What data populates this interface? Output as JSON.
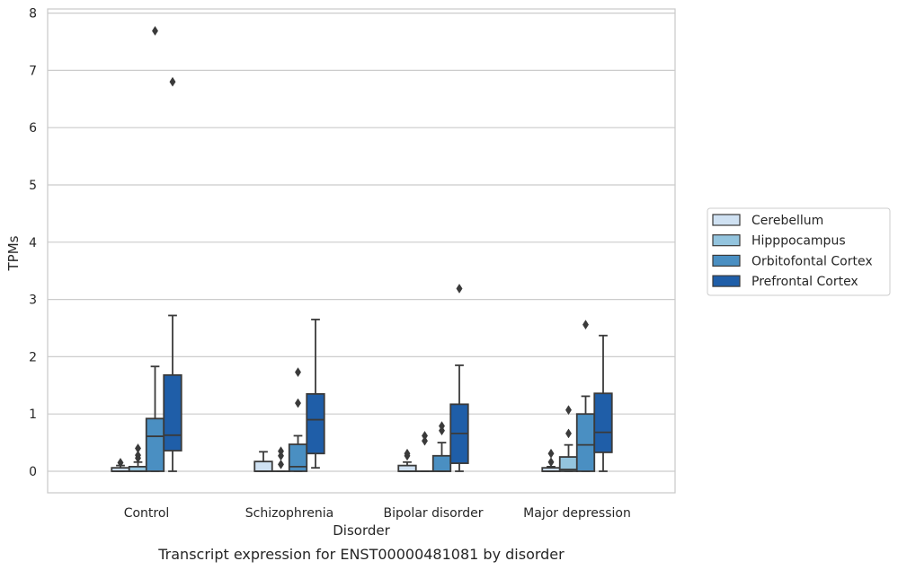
{
  "chart_data": {
    "type": "box",
    "caption": "Transcript expression for ENST00000481081 by disorder",
    "xlabel": "Disorder",
    "ylabel": "TPMs",
    "ylim": [
      -0.37,
      8.1
    ],
    "yticks": [
      0,
      1,
      2,
      3,
      4,
      5,
      6,
      7,
      8
    ],
    "grid": "horizontal",
    "legend_position": "right",
    "categories": [
      "Control",
      "Schizophrenia",
      "Bipolar disorder",
      "Major depression"
    ],
    "series": [
      {
        "name": "Cerebellum",
        "color": "#cfe1f2",
        "boxes": [
          {
            "whisker_low": 0.0,
            "q1": 0.0,
            "median": 0.0,
            "q3": 0.06,
            "whisker_high": 0.1,
            "outliers": [
              0.15
            ]
          },
          {
            "whisker_low": 0.0,
            "q1": 0.0,
            "median": 0.0,
            "q3": 0.17,
            "whisker_high": 0.34,
            "outliers": []
          },
          {
            "whisker_low": 0.0,
            "q1": 0.0,
            "median": 0.0,
            "q3": 0.1,
            "whisker_high": 0.16,
            "outliers": [
              0.27,
              0.31
            ]
          },
          {
            "whisker_low": 0.0,
            "q1": 0.0,
            "median": 0.0,
            "q3": 0.06,
            "whisker_high": 0.08,
            "outliers": [
              0.16,
              0.31
            ]
          }
        ]
      },
      {
        "name": "Hipppocampus",
        "color": "#93c4de",
        "boxes": [
          {
            "whisker_low": 0.0,
            "q1": 0.0,
            "median": 0.0,
            "q3": 0.08,
            "whisker_high": 0.16,
            "outliers": [
              0.23,
              0.28,
              0.4
            ]
          },
          {
            "whisker_low": 0.0,
            "q1": 0.0,
            "median": 0.0,
            "q3": 0.0,
            "whisker_high": 0.0,
            "outliers": [
              0.12,
              0.27,
              0.35
            ]
          },
          {
            "whisker_low": 0.0,
            "q1": 0.0,
            "median": 0.0,
            "q3": 0.0,
            "whisker_high": 0.0,
            "outliers": [
              0.53,
              0.62
            ]
          },
          {
            "whisker_low": 0.0,
            "q1": 0.0,
            "median": 0.03,
            "q3": 0.25,
            "whisker_high": 0.46,
            "outliers": [
              0.66,
              1.07
            ]
          }
        ]
      },
      {
        "name": "Orbitofontal Cortex",
        "color": "#4a8fc2",
        "boxes": [
          {
            "whisker_low": 0.0,
            "q1": 0.0,
            "median": 0.61,
            "q3": 0.92,
            "whisker_high": 1.83,
            "outliers": [
              7.69
            ]
          },
          {
            "whisker_low": 0.0,
            "q1": 0.0,
            "median": 0.08,
            "q3": 0.47,
            "whisker_high": 0.62,
            "outliers": [
              1.19,
              1.73
            ]
          },
          {
            "whisker_low": 0.0,
            "q1": 0.0,
            "median": 0.0,
            "q3": 0.27,
            "whisker_high": 0.5,
            "outliers": [
              0.71,
              0.79
            ]
          },
          {
            "whisker_low": 0.0,
            "q1": 0.0,
            "median": 0.46,
            "q3": 1.0,
            "whisker_high": 1.31,
            "outliers": [
              2.56
            ]
          }
        ]
      },
      {
        "name": "Prefrontal Cortex",
        "color": "#1f5ea8",
        "boxes": [
          {
            "whisker_low": 0.0,
            "q1": 0.36,
            "median": 0.63,
            "q3": 1.68,
            "whisker_high": 2.72,
            "outliers": [
              6.8
            ]
          },
          {
            "whisker_low": 0.06,
            "q1": 0.31,
            "median": 0.9,
            "q3": 1.35,
            "whisker_high": 2.65,
            "outliers": []
          },
          {
            "whisker_low": 0.0,
            "q1": 0.14,
            "median": 0.66,
            "q3": 1.17,
            "whisker_high": 1.85,
            "outliers": [
              3.19
            ]
          },
          {
            "whisker_low": 0.0,
            "q1": 0.33,
            "median": 0.68,
            "q3": 1.36,
            "whisker_high": 2.37,
            "outliers": []
          }
        ]
      }
    ]
  }
}
